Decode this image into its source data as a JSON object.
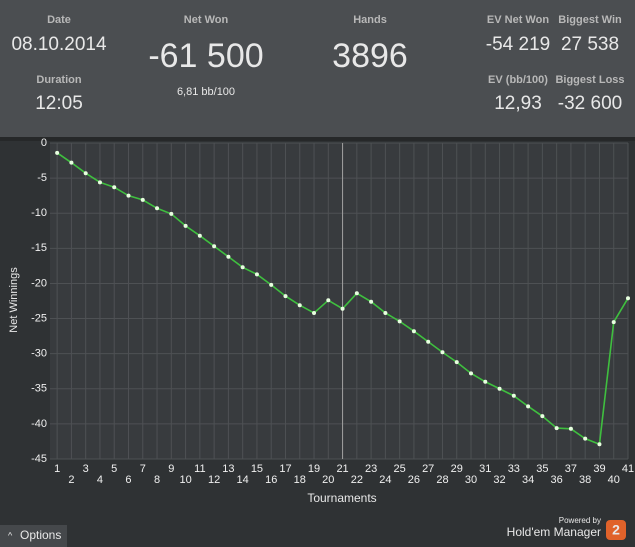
{
  "header": {
    "stats": [
      {
        "label": "Date",
        "value": "08.10.2014"
      },
      {
        "label": "Duration",
        "value": "12:05"
      },
      {
        "label": "Net Won",
        "value": "-61 500"
      },
      {
        "label": "Hands",
        "value": "3896"
      },
      {
        "label": "EV Net Won",
        "value": "-54 219"
      },
      {
        "label": "Biggest Win",
        "value": "27 538"
      },
      {
        "label": "EV (bb/100)",
        "value": "12,93"
      },
      {
        "label": "Biggest Loss",
        "value": "-32 600"
      }
    ],
    "net_won_rate": "6,81 bb/100"
  },
  "chart_data": {
    "type": "line",
    "xlabel": "Tournaments",
    "ylabel": "Net Winnings",
    "x": [
      1,
      2,
      3,
      4,
      5,
      6,
      7,
      8,
      9,
      10,
      11,
      12,
      13,
      14,
      15,
      16,
      17,
      18,
      19,
      20,
      21,
      22,
      23,
      24,
      25,
      26,
      27,
      28,
      29,
      30,
      31,
      32,
      33,
      34,
      35,
      36,
      37,
      38,
      39,
      40,
      41
    ],
    "series": [
      {
        "color": "#3fbf3f",
        "values": [
          -1.4,
          -2.8,
          -4.3,
          -5.6,
          -6.3,
          -7.5,
          -8.1,
          -9.3,
          -10.1,
          -11.8,
          -13.2,
          -14.7,
          -16.2,
          -17.7,
          -18.7,
          -20.2,
          -21.8,
          -23.1,
          -24.2,
          -22.4,
          -23.6,
          -21.4,
          -22.6,
          -24.2,
          -25.4,
          -26.8,
          -28.3,
          -29.8,
          -31.2,
          -32.8,
          -34.0,
          -35.0,
          -36.0,
          -37.5,
          -38.9,
          -40.6,
          -40.7,
          -42.1,
          -42.9,
          -25.5,
          -22.1
        ]
      }
    ],
    "xlim": [
      0.5,
      41
    ],
    "xticks": [
      1,
      2,
      3,
      4,
      5,
      6,
      7,
      8,
      9,
      10,
      11,
      12,
      13,
      14,
      15,
      16,
      17,
      18,
      19,
      20,
      21,
      22,
      23,
      24,
      25,
      26,
      27,
      28,
      29,
      30,
      31,
      32,
      33,
      34,
      35,
      36,
      37,
      38,
      39,
      40,
      41
    ],
    "ylim": [
      -45,
      0
    ],
    "yticks": [
      0,
      -5,
      -10,
      -15,
      -20,
      -25,
      -30,
      -35,
      -40,
      -45
    ],
    "grid": true
  },
  "footer": {
    "options": "Options",
    "powered_by": "Powered by",
    "brand": "Hold'em Manager",
    "brand_badge": "2"
  }
}
